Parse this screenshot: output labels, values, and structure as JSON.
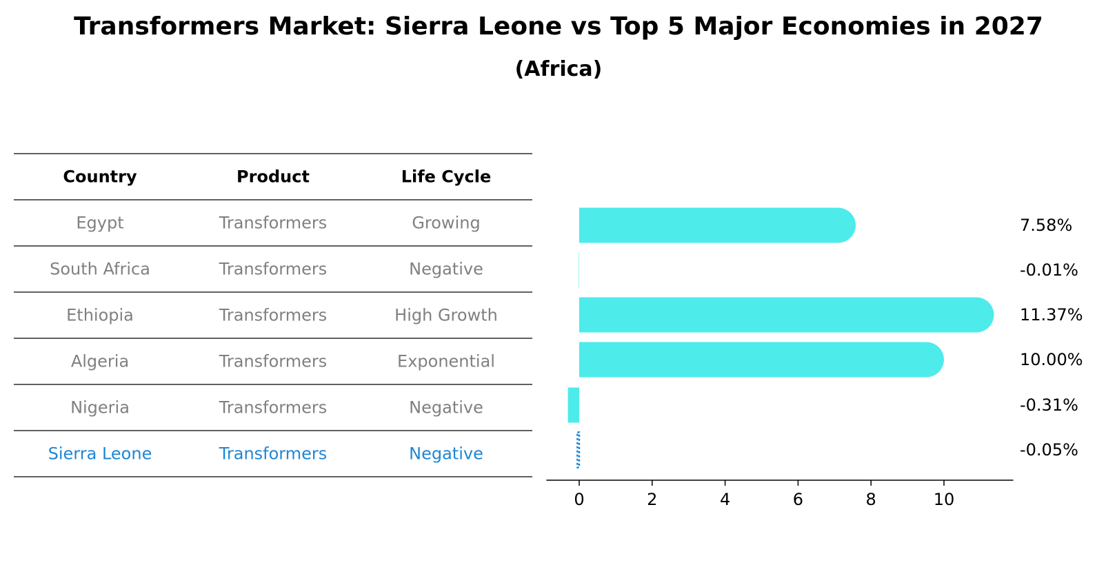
{
  "title": "Transformers Market: Sierra Leone vs Top 5 Major Economies in 2027",
  "subtitle": "(Africa)",
  "colors": {
    "bar": "#4EEBEB",
    "highlight": "#1F86D4",
    "muted": "#808080"
  },
  "table": {
    "headers": [
      "Country",
      "Product",
      "Life Cycle"
    ],
    "rows": [
      [
        "Egypt",
        "Transformers",
        "Growing"
      ],
      [
        "South Africa",
        "Transformers",
        "Negative"
      ],
      [
        "Ethiopia",
        "Transformers",
        "High Growth"
      ],
      [
        "Algeria",
        "Transformers",
        "Exponential"
      ],
      [
        "Nigeria",
        "Transformers",
        "Negative"
      ],
      [
        "Sierra Leone",
        "Transformers",
        "Negative"
      ]
    ],
    "highlight_row": 5
  },
  "chart_data": {
    "type": "bar",
    "orientation": "horizontal",
    "title": "Transformers Market: Sierra Leone vs Top 5 Major Economies in 2027",
    "subtitle": "(Africa)",
    "categories": [
      "Egypt",
      "South Africa",
      "Ethiopia",
      "Algeria",
      "Nigeria",
      "Sierra Leone"
    ],
    "values": [
      7.58,
      -0.01,
      11.37,
      10.0,
      -0.31,
      -0.05
    ],
    "value_labels": [
      "7.58%",
      "-0.01%",
      "11.37%",
      "10.00%",
      "-0.31%",
      "-0.05%"
    ],
    "xticks": [
      0,
      2,
      4,
      6,
      8,
      10
    ],
    "xlim": [
      -0.9,
      11.9
    ],
    "xlabel": "",
    "ylabel": "",
    "grid": false
  }
}
